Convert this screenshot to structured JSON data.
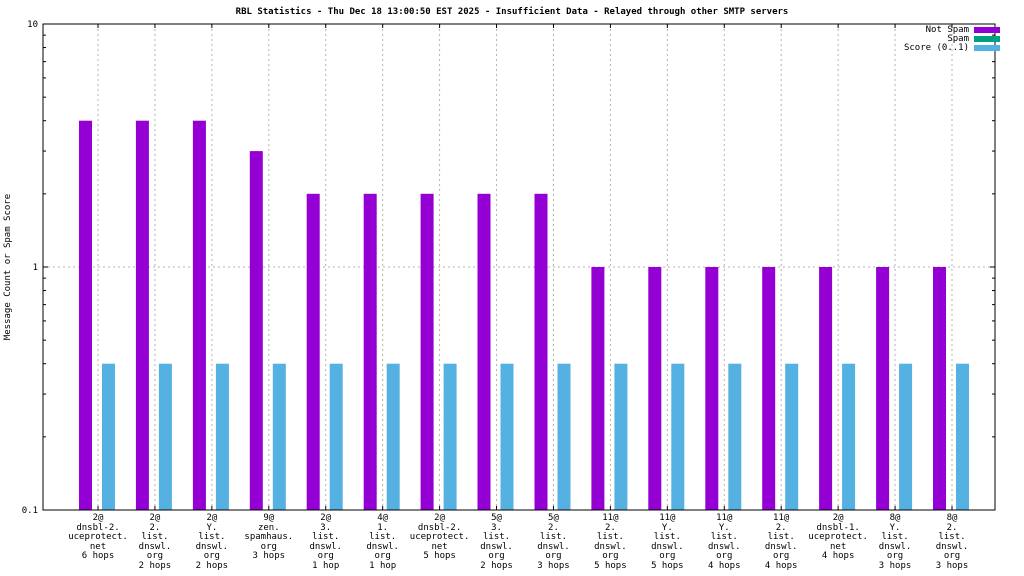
{
  "title": "RBL Statistics - Thu Dec 18 13:00:50 EST 2025 - Insufficient Data - Relayed through other SMTP servers",
  "legend": [
    {
      "label": "Not Spam",
      "color": "#9400d3"
    },
    {
      "label": "Spam",
      "color": "#00a080"
    },
    {
      "label": "Score (0..1)",
      "color": "#55b1e1"
    }
  ],
  "chart_data": {
    "type": "bar",
    "scale": "log",
    "title": "RBL Statistics - Thu Dec 18 13:00:50 EST 2025 - Insufficient Data - Relayed through other SMTP servers",
    "ylabel": "Message Count or Spam Score",
    "xlabel": "",
    "ylim": [
      0.1,
      10
    ],
    "yticks": [
      [
        10,
        "10"
      ],
      [
        1,
        "1"
      ],
      [
        0.1,
        "0.1"
      ]
    ],
    "grid": {
      "horizontal_at": [
        1
      ],
      "vertical_per_category": true,
      "style": "dashed-gray"
    },
    "legend_position": "top-right",
    "categories": [
      [
        "2@",
        "dnsbl-2.",
        "uceprotect.",
        "net",
        "6 hops"
      ],
      [
        "2@",
        "2.",
        "list.",
        "dnswl.",
        "org",
        "2 hops"
      ],
      [
        "2@",
        "Y.",
        "list.",
        "dnswl.",
        "org",
        "2 hops"
      ],
      [
        "9@",
        "zen.",
        "spamhaus.",
        "org",
        "3 hops"
      ],
      [
        "2@",
        "3.",
        "list.",
        "dnswl.",
        "org",
        "1 hop"
      ],
      [
        "4@",
        "1.",
        "list.",
        "dnswl.",
        "org",
        "1 hop"
      ],
      [
        "2@",
        "dnsbl-2.",
        "uceprotect.",
        "net",
        "5 hops"
      ],
      [
        "5@",
        "3.",
        "list.",
        "dnswl.",
        "org",
        "2 hops"
      ],
      [
        "5@",
        "2.",
        "list.",
        "dnswl.",
        "org",
        "3 hops"
      ],
      [
        "11@",
        "2.",
        "list.",
        "dnswl.",
        "org",
        "5 hops"
      ],
      [
        "11@",
        "Y.",
        "list.",
        "dnswl.",
        "org",
        "5 hops"
      ],
      [
        "11@",
        "Y.",
        "list.",
        "dnswl.",
        "org",
        "4 hops"
      ],
      [
        "11@",
        "2.",
        "list.",
        "dnswl.",
        "org",
        "4 hops"
      ],
      [
        "2@",
        "dnsbl-1.",
        "uceprotect.",
        "net",
        "4 hops"
      ],
      [
        "8@",
        "Y.",
        "list.",
        "dnswl.",
        "org",
        "3 hops"
      ],
      [
        "8@",
        "2.",
        "list.",
        "dnswl.",
        "org",
        "3 hops"
      ]
    ],
    "series": [
      {
        "name": "Not Spam",
        "color": "#9400d3",
        "values": [
          4,
          4,
          4,
          3,
          2,
          2,
          2,
          2,
          2,
          1,
          1,
          1,
          1,
          1,
          1,
          1
        ]
      },
      {
        "name": "Spam",
        "color": "#00a080",
        "values": [
          0,
          0,
          0,
          0,
          0,
          0,
          0,
          0,
          0,
          0,
          0,
          0,
          0,
          0,
          0,
          0
        ]
      },
      {
        "name": "Score (0..1)",
        "color": "#55b1e1",
        "values": [
          0.4,
          0.4,
          0.4,
          0.4,
          0.4,
          0.4,
          0.4,
          0.4,
          0.4,
          0.4,
          0.4,
          0.4,
          0.4,
          0.4,
          0.4,
          0.4
        ]
      }
    ]
  }
}
